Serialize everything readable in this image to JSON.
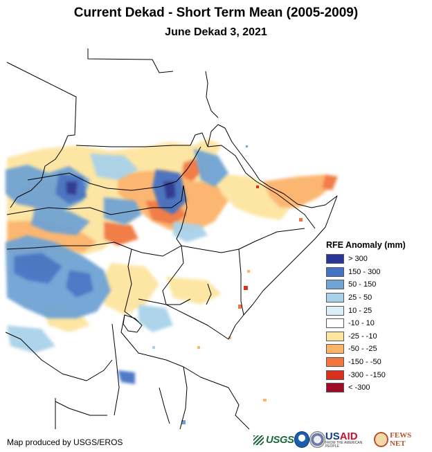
{
  "header": {
    "title": "Current Dekad - Short Term Mean (2005-2009)",
    "subtitle": "June Dekad 3, 2021"
  },
  "legend": {
    "title": "RFE Anomaly (mm)",
    "items": [
      {
        "label": "> 300",
        "color": "#2b3594"
      },
      {
        "label": "150 - 300",
        "color": "#4472c4"
      },
      {
        "label": "50 - 150",
        "color": "#6fa3d4"
      },
      {
        "label": "25 - 50",
        "color": "#a9d2ea"
      },
      {
        "label": "10 - 25",
        "color": "#dbeff7"
      },
      {
        "label": "-10 - 10",
        "color": "#ffffff"
      },
      {
        "label": "-25 - -10",
        "color": "#fde4a0"
      },
      {
        "label": "-50 - -25",
        "color": "#fbb46a"
      },
      {
        "label": "-150 - -50",
        "color": "#f1773f"
      },
      {
        "label": "-300 - -150",
        "color": "#d7301f"
      },
      {
        "label": "< -300",
        "color": "#9e0b27"
      }
    ]
  },
  "footer": {
    "credit": "Map produced by USGS/EROS",
    "logos": {
      "usgs": "USGS",
      "usaid_us": "US",
      "usaid_aid": "AID",
      "usaid_tagline": "FROM THE AMERICAN PEOPLE",
      "fews": "FEWS NET"
    }
  },
  "colors": {
    "border": "#000000",
    "background": "#ffffff"
  }
}
